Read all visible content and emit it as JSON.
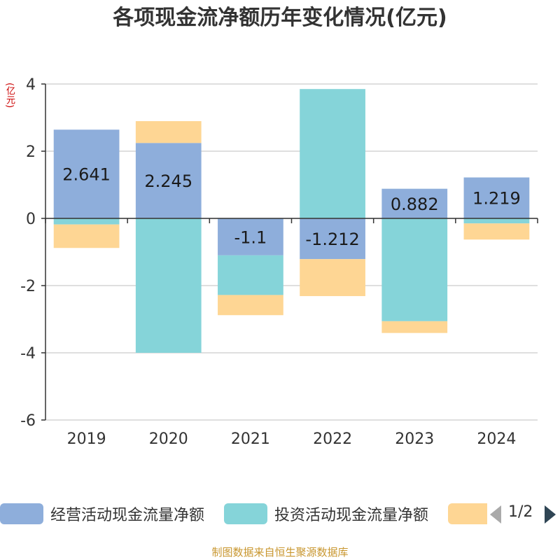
{
  "colors": {
    "operating": "#8eaedb",
    "investing": "#85d4d9",
    "financing": "#fed694",
    "axis": "#333333",
    "grid": "#cccccc"
  },
  "legend": {
    "items": [
      {
        "label": "经营活动现金流量净额",
        "color": "#8eaedb"
      },
      {
        "label": "投资活动现金流量净额",
        "color": "#85d4d9"
      },
      {
        "label": "",
        "color": "#fed694"
      }
    ],
    "page": "1/2",
    "prev_icon": "triangle-left-icon",
    "next_icon": "triangle-right-icon"
  },
  "source": "制图数据来自恒生聚源数据库",
  "chart_data": {
    "type": "bar",
    "stacked": true,
    "title": "各项现金流净额历年变化情况(亿元)",
    "unit_label": "(亿元)",
    "categories": [
      "2019",
      "2020",
      "2021",
      "2022",
      "2023",
      "2024"
    ],
    "ylim": [
      -6,
      4
    ],
    "yticks": [
      -6,
      -4,
      -2,
      0,
      2,
      4
    ],
    "grid": true,
    "series": [
      {
        "name": "经营活动现金流量净额",
        "color": "#8eaedb",
        "values": [
          2.641,
          2.245,
          -1.1,
          -1.212,
          0.882,
          1.219
        ],
        "labels": [
          "2.641",
          "2.245",
          "-1.1",
          "-1.212",
          "0.882",
          "1.219"
        ]
      },
      {
        "name": "投资活动现金流量净额",
        "color": "#85d4d9",
        "values": [
          -0.18,
          -4.0,
          -1.18,
          3.85,
          -3.06,
          -0.15
        ]
      },
      {
        "name": "",
        "color": "#fed694",
        "values": [
          -0.7,
          0.65,
          -0.6,
          -1.1,
          -0.35,
          -0.48
        ]
      }
    ]
  }
}
